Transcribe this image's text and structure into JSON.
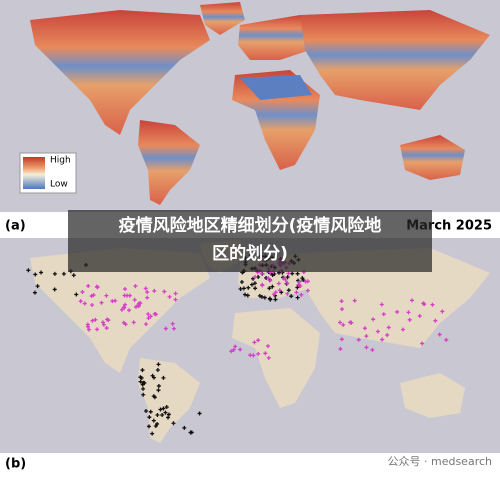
{
  "panel_a": {
    "label": "(a)",
    "legend": {
      "high": "High",
      "low": "Low"
    }
  },
  "panel_b": {
    "label": "(b)"
  },
  "date": "March 2025",
  "overlay_title": {
    "lines": [
      "疫情风险地区精细划分(疫情风险地",
      "区的划分)"
    ]
  },
  "watermark": "公众号 · medsearch"
}
